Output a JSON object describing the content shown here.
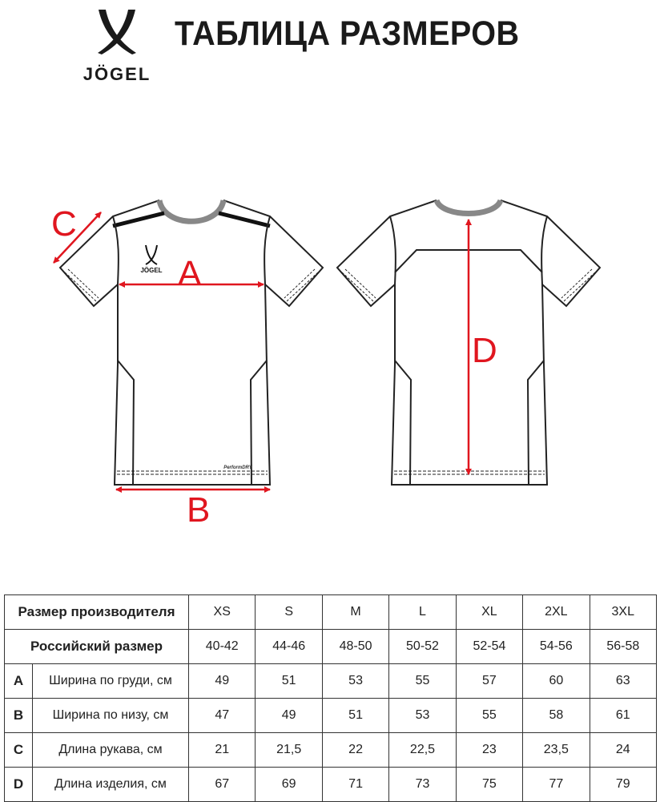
{
  "brand": {
    "logo_text": "JÖGEL"
  },
  "title": "ТАБЛИЦА РАЗМЕРОВ",
  "garment": {
    "chest_logo_text": "JÖGEL",
    "hem_label": "PerformDRY",
    "measure_labels": {
      "A": "A",
      "B": "B",
      "C": "C",
      "D": "D"
    },
    "measure_color": "#e0161f"
  },
  "size_table": {
    "header_label": "Размер производителя",
    "sizes": [
      "XS",
      "S",
      "M",
      "L",
      "XL",
      "2XL",
      "3XL"
    ],
    "russian_label": "Российский размер",
    "russian_sizes": [
      "40-42",
      "44-46",
      "48-50",
      "50-52",
      "52-54",
      "54-56",
      "56-58"
    ],
    "rows": [
      {
        "letter": "A",
        "label": "Ширина по груди, см",
        "values": [
          "49",
          "51",
          "53",
          "55",
          "57",
          "60",
          "63"
        ]
      },
      {
        "letter": "B",
        "label": "Ширина по низу, см",
        "values": [
          "47",
          "49",
          "51",
          "53",
          "55",
          "58",
          "61"
        ]
      },
      {
        "letter": "C",
        "label": "Длина рукава, см",
        "values": [
          "21",
          "21,5",
          "22",
          "22,5",
          "23",
          "23,5",
          "24"
        ]
      },
      {
        "letter": "D",
        "label": "Длина изделия, см",
        "values": [
          "67",
          "69",
          "71",
          "73",
          "75",
          "77",
          "79"
        ]
      }
    ]
  }
}
